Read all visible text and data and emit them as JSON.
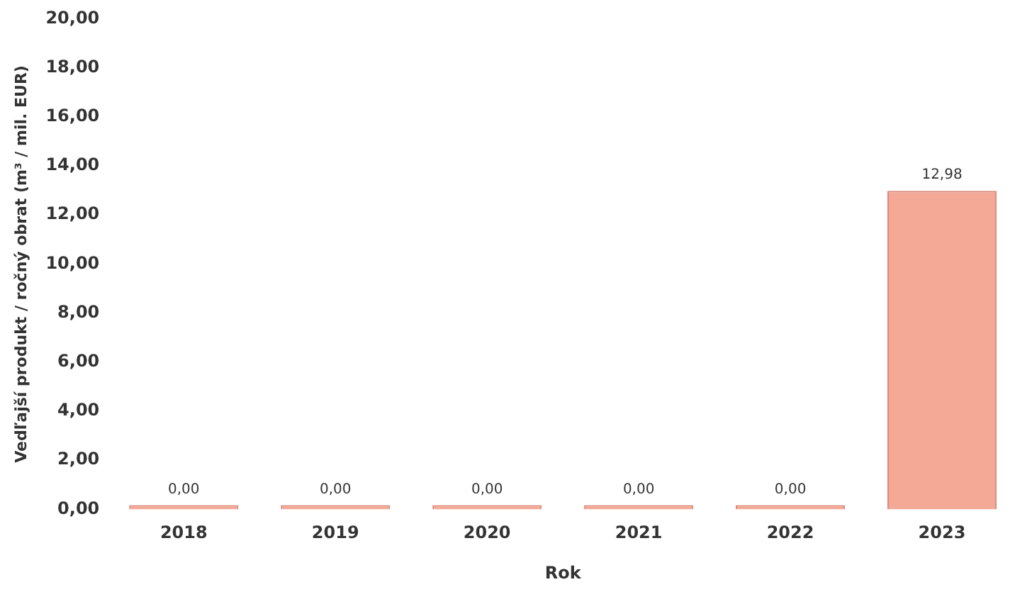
{
  "chart_data": {
    "type": "bar",
    "xlabel": "Rok",
    "ylabel": "Vedľajší produkt / ročný obrat (m³ / mil. EUR)",
    "categories": [
      "2018",
      "2019",
      "2020",
      "2021",
      "2022",
      "2023"
    ],
    "values": [
      0,
      0,
      0,
      0,
      0,
      12.98
    ],
    "value_labels": [
      "0,00",
      "0,00",
      "0,00",
      "0,00",
      "0,00",
      "12,98"
    ],
    "color": "#f4a896",
    "ylim": [
      0,
      20
    ],
    "yticks": [
      {
        "value": 0,
        "label": "0,00"
      },
      {
        "value": 2,
        "label": "2,00"
      },
      {
        "value": 4,
        "label": "4,00"
      },
      {
        "value": 6,
        "label": "6,00"
      },
      {
        "value": 8,
        "label": "8,00"
      },
      {
        "value": 10,
        "label": "10,00"
      },
      {
        "value": 12,
        "label": "12,00"
      },
      {
        "value": 14,
        "label": "14,00"
      },
      {
        "value": 16,
        "label": "16,00"
      },
      {
        "value": 18,
        "label": "18,00"
      },
      {
        "value": 20,
        "label": "20,00"
      }
    ],
    "grid": false,
    "legend": false
  }
}
